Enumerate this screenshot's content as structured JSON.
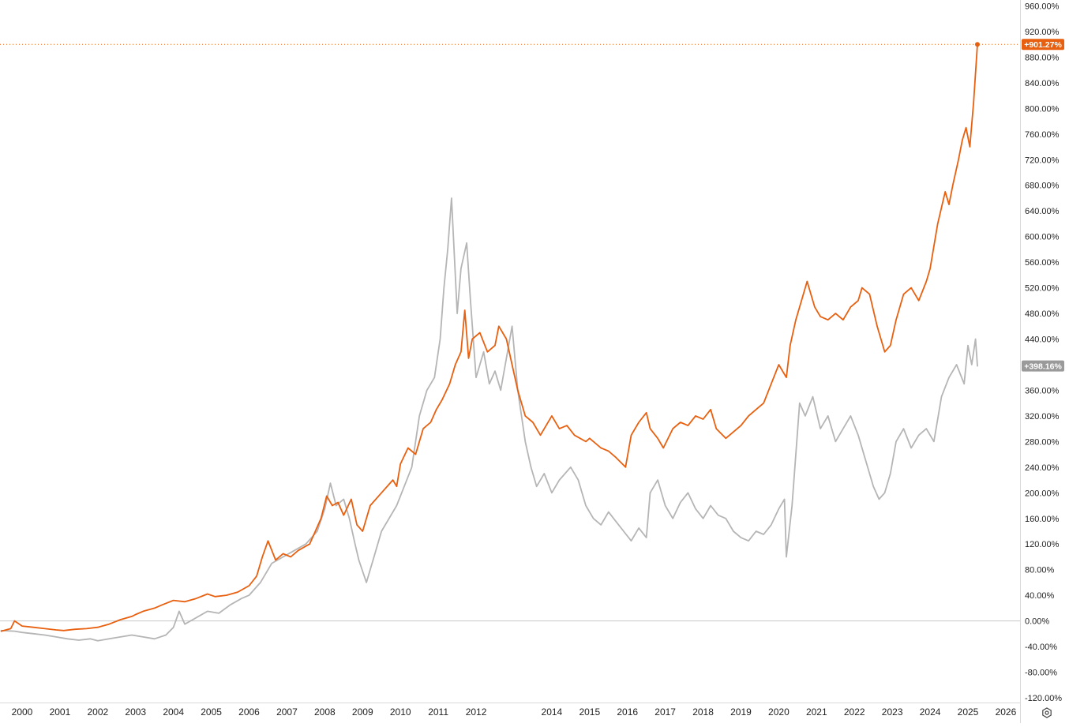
{
  "chart_data": {
    "type": "line",
    "title": "",
    "xlabel": "",
    "ylabel": "",
    "x_range": [
      1999.45,
      2026.45
    ],
    "ylim": [
      -120,
      970
    ],
    "y_ticks": [
      -120,
      -80,
      -40,
      0,
      40,
      80,
      120,
      160,
      200,
      240,
      280,
      320,
      360,
      400,
      440,
      480,
      520,
      560,
      600,
      640,
      680,
      720,
      760,
      800,
      840,
      880,
      920,
      960
    ],
    "y_tick_labels": [
      "-120.00%",
      "-80.00%",
      "-40.00%",
      "0.00%",
      "40.00%",
      "80.00%",
      "120.00%",
      "160.00%",
      "200.00%",
      "240.00%",
      "280.00%",
      "320.00%",
      "360.00%",
      "400.00%",
      "440.00%",
      "480.00%",
      "520.00%",
      "560.00%",
      "600.00%",
      "640.00%",
      "680.00%",
      "720.00%",
      "760.00%",
      "800.00%",
      "840.00%",
      "880.00%",
      "920.00%",
      "960.00%"
    ],
    "x_ticks": [
      2000,
      2001,
      2002,
      2003,
      2004,
      2005,
      2006,
      2007,
      2008,
      2009,
      2010,
      2011,
      2012,
      2014,
      2015,
      2016,
      2017,
      2018,
      2019,
      2020,
      2021,
      2022,
      2023,
      2024,
      2025,
      2026
    ],
    "x_tick_labels": [
      "2000",
      "2001",
      "2002",
      "2003",
      "2004",
      "2005",
      "2006",
      "2007",
      "2008",
      "2009",
      "2010",
      "2011",
      "2012",
      "2014",
      "2015",
      "2016",
      "2017",
      "2018",
      "2019",
      "2020",
      "2021",
      "2022",
      "2023",
      "2024",
      "2025",
      "2026"
    ],
    "zero_line": true,
    "grid": false,
    "series": [
      {
        "color": "#e8600f",
        "last_value_label": "+901.27%",
        "x": [
          1999.45,
          1999.7,
          1999.8,
          2000.0,
          2000.3,
          2000.6,
          2000.9,
          2001.1,
          2001.4,
          2001.7,
          2002.0,
          2002.3,
          2002.6,
          2002.9,
          2003.0,
          2003.2,
          2003.5,
          2003.7,
          2004.0,
          2004.3,
          2004.6,
          2004.9,
          2005.1,
          2005.4,
          2005.7,
          2006.0,
          2006.2,
          2006.35,
          2006.5,
          2006.7,
          2006.9,
          2007.1,
          2007.3,
          2007.6,
          2007.9,
          2008.05,
          2008.2,
          2008.35,
          2008.5,
          2008.7,
          2008.85,
          2009.0,
          2009.2,
          2009.5,
          2009.8,
          2009.9,
          2010.0,
          2010.2,
          2010.4,
          2010.6,
          2010.8,
          2010.95,
          2011.1,
          2011.3,
          2011.45,
          2011.6,
          2011.7,
          2011.8,
          2011.9,
          2012.1,
          2012.3,
          2012.5,
          2012.6,
          2012.8,
          2012.95,
          2013.1,
          2013.3,
          2013.5,
          2013.7,
          2014.0,
          2014.2,
          2014.4,
          2014.6,
          2014.9,
          2015.0,
          2015.3,
          2015.5,
          2015.7,
          2015.95,
          2016.1,
          2016.3,
          2016.5,
          2016.6,
          2016.8,
          2016.95,
          2017.2,
          2017.4,
          2017.6,
          2017.8,
          2018.0,
          2018.2,
          2018.35,
          2018.6,
          2018.8,
          2019.0,
          2019.2,
          2019.4,
          2019.6,
          2019.8,
          2020.0,
          2020.2,
          2020.3,
          2020.45,
          2020.6,
          2020.75,
          2020.95,
          2021.1,
          2021.3,
          2021.5,
          2021.7,
          2021.9,
          2022.1,
          2022.2,
          2022.4,
          2022.6,
          2022.8,
          2022.95,
          2023.1,
          2023.3,
          2023.5,
          2023.7,
          2023.9,
          2024.0,
          2024.2,
          2024.4,
          2024.5,
          2024.6,
          2024.75,
          2024.85,
          2024.95,
          2025.05,
          2025.15,
          2025.25
        ],
        "y": [
          -16,
          -12,
          0,
          -8,
          -10,
          -12,
          -14,
          -15,
          -13,
          -12,
          -10,
          -5,
          2,
          7,
          10,
          15,
          20,
          25,
          32,
          30,
          35,
          42,
          38,
          40,
          45,
          55,
          70,
          100,
          125,
          95,
          105,
          100,
          110,
          120,
          160,
          195,
          180,
          185,
          165,
          190,
          150,
          140,
          180,
          200,
          220,
          210,
          245,
          270,
          260,
          300,
          310,
          330,
          345,
          370,
          400,
          420,
          485,
          410,
          440,
          450,
          420,
          430,
          460,
          440,
          400,
          360,
          320,
          310,
          290,
          320,
          300,
          305,
          290,
          280,
          285,
          270,
          265,
          255,
          240,
          290,
          310,
          325,
          300,
          285,
          270,
          300,
          310,
          305,
          320,
          315,
          330,
          300,
          285,
          295,
          305,
          320,
          330,
          340,
          370,
          400,
          380,
          430,
          470,
          500,
          530,
          490,
          475,
          470,
          480,
          470,
          490,
          500,
          520,
          510,
          460,
          420,
          430,
          470,
          510,
          520,
          500,
          530,
          550,
          620,
          670,
          650,
          680,
          720,
          750,
          770,
          740,
          810,
          900
        ]
      },
      {
        "color": "#b5b5b5",
        "last_value_label": "+398.16%",
        "x": [
          1999.45,
          1999.8,
          2000.0,
          2000.3,
          2000.6,
          2000.9,
          2001.2,
          2001.5,
          2001.8,
          2002.0,
          2002.3,
          2002.6,
          2002.9,
          2003.2,
          2003.5,
          2003.8,
          2004.0,
          2004.15,
          2004.3,
          2004.6,
          2004.9,
          2005.2,
          2005.5,
          2005.8,
          2006.0,
          2006.3,
          2006.6,
          2006.9,
          2007.2,
          2007.5,
          2007.8,
          2008.0,
          2008.15,
          2008.3,
          2008.5,
          2008.65,
          2008.8,
          2008.9,
          2009.1,
          2009.3,
          2009.5,
          2009.7,
          2009.9,
          2010.1,
          2010.3,
          2010.5,
          2010.7,
          2010.9,
          2011.05,
          2011.15,
          2011.25,
          2011.35,
          2011.5,
          2011.6,
          2011.75,
          2011.85,
          2012.0,
          2012.2,
          2012.35,
          2012.5,
          2012.65,
          2012.8,
          2012.95,
          2013.1,
          2013.3,
          2013.45,
          2013.6,
          2013.8,
          2014.0,
          2014.2,
          2014.5,
          2014.7,
          2014.9,
          2015.1,
          2015.3,
          2015.5,
          2015.7,
          2015.9,
          2016.1,
          2016.3,
          2016.5,
          2016.6,
          2016.8,
          2017.0,
          2017.2,
          2017.4,
          2017.6,
          2017.8,
          2018.0,
          2018.2,
          2018.4,
          2018.6,
          2018.8,
          2019.0,
          2019.2,
          2019.4,
          2019.6,
          2019.8,
          2020.0,
          2020.15,
          2020.2,
          2020.35,
          2020.55,
          2020.7,
          2020.9,
          2021.1,
          2021.3,
          2021.5,
          2021.7,
          2021.9,
          2022.1,
          2022.3,
          2022.5,
          2022.65,
          2022.8,
          2022.95,
          2023.1,
          2023.3,
          2023.5,
          2023.7,
          2023.9,
          2024.1,
          2024.3,
          2024.5,
          2024.7,
          2024.9,
          2025.0,
          2025.1,
          2025.2,
          2025.25
        ],
        "y": [
          -15,
          -16,
          -18,
          -20,
          -22,
          -25,
          -28,
          -30,
          -28,
          -31,
          -28,
          -25,
          -22,
          -25,
          -28,
          -22,
          -10,
          15,
          -5,
          5,
          15,
          12,
          25,
          35,
          40,
          60,
          90,
          100,
          110,
          120,
          140,
          175,
          215,
          180,
          190,
          160,
          120,
          95,
          60,
          100,
          140,
          160,
          180,
          210,
          240,
          320,
          360,
          380,
          440,
          520,
          580,
          660,
          480,
          550,
          590,
          500,
          380,
          420,
          370,
          390,
          360,
          410,
          460,
          360,
          280,
          240,
          210,
          230,
          200,
          220,
          240,
          220,
          180,
          160,
          150,
          170,
          155,
          140,
          125,
          145,
          130,
          200,
          220,
          180,
          160,
          185,
          200,
          175,
          160,
          180,
          165,
          160,
          140,
          130,
          125,
          140,
          135,
          150,
          175,
          190,
          100,
          180,
          340,
          320,
          350,
          300,
          320,
          280,
          300,
          320,
          290,
          250,
          210,
          190,
          200,
          230,
          280,
          300,
          270,
          290,
          300,
          280,
          350,
          380,
          400,
          370,
          430,
          400,
          440,
          398
        ]
      }
    ]
  }
}
